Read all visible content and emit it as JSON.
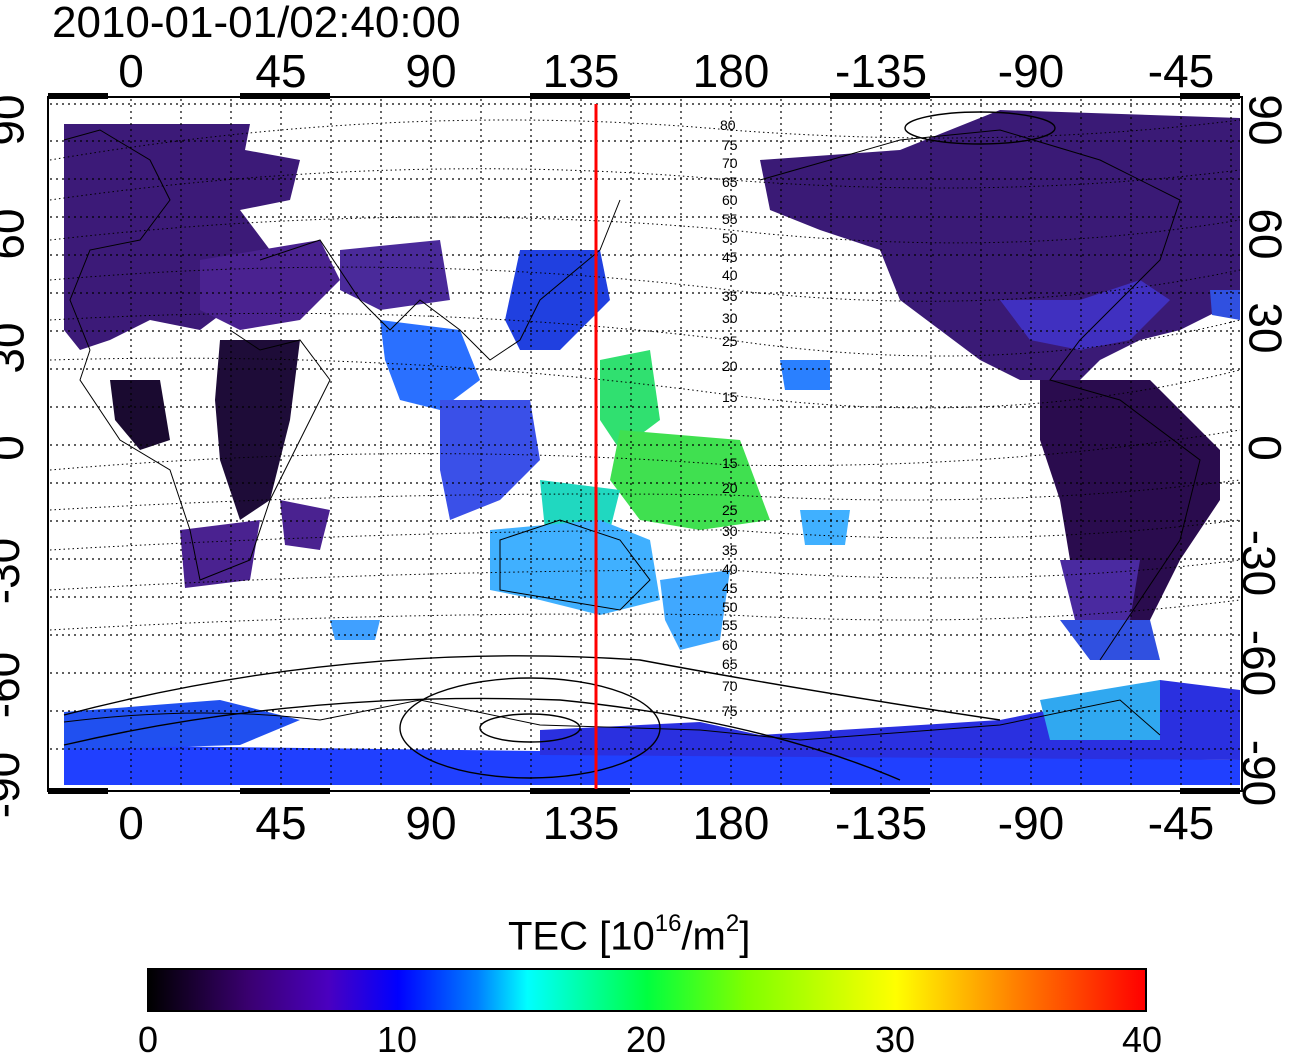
{
  "title": "2010-01-01/02:40:00",
  "x_ticks_top": [
    "0",
    "45",
    "90",
    "135",
    "180",
    "-135",
    "-90",
    "-45"
  ],
  "x_ticks_bottom": [
    "0",
    "45",
    "90",
    "135",
    "180",
    "-135",
    "-90",
    "-45"
  ],
  "y_ticks_left": [
    "90",
    "60",
    "30",
    "0",
    "-30",
    "-60",
    "-90"
  ],
  "y_ticks_right": [
    "90",
    "60",
    "30",
    "0",
    "-30",
    "-60",
    "-90"
  ],
  "contour_labels": [
    "80",
    "75",
    "70",
    "65",
    "60",
    "55",
    "50",
    "45",
    "40",
    "35",
    "30",
    "25",
    "20",
    "15",
    "15",
    "20",
    "25",
    "30",
    "35",
    "40",
    "45",
    "50",
    "55",
    "60",
    "65",
    "70",
    "75"
  ],
  "colorbar": {
    "label_main": "TEC  [10",
    "label_sup1": "16",
    "label_mid": "/m",
    "label_sup2": "2",
    "label_end": "]",
    "ticks": [
      "0",
      "10",
      "20",
      "30",
      "40"
    ],
    "range": [
      0,
      40
    ],
    "colors": [
      "#000000",
      "#3a0070",
      "#0000ff",
      "#00ffff",
      "#00ff40",
      "#ffff00",
      "#ff0000"
    ]
  },
  "overlay": {
    "meridian_longitude": 140,
    "meridian_color": "#ff0000"
  }
}
